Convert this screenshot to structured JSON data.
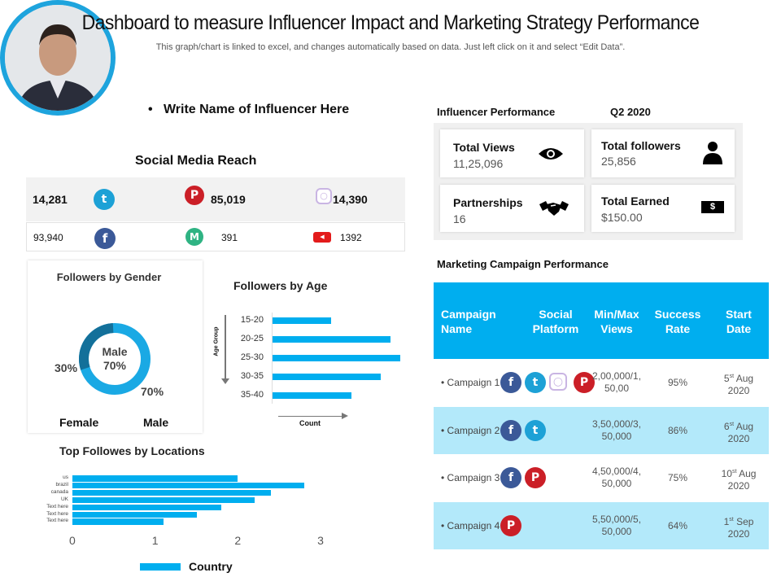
{
  "header": {
    "title": "Dashboard to measure Influencer Impact and Marketing Strategy Performance",
    "subtitle": "This graph/chart is linked to excel, and changes automatically based on data. Just left click on it and select “Edit Data”."
  },
  "influencer": {
    "name": "Write Name of Influencer Here",
    "bullet": "•"
  },
  "reach": {
    "title": "Social Media Reach",
    "items": [
      {
        "platform": "twitter",
        "value": "14,281"
      },
      {
        "platform": "pinterest",
        "value": "85,019"
      },
      {
        "platform": "instagram",
        "value": "14,390"
      },
      {
        "platform": "facebook",
        "value": "93,940"
      },
      {
        "platform": "medium",
        "value": "391"
      },
      {
        "platform": "youtube",
        "value": "1392"
      }
    ]
  },
  "gender": {
    "title": "Followers by Gender",
    "center_label": "Male",
    "center_value": "70%",
    "female_pct": "30%",
    "male_pct": "70%",
    "legend_female": "Female",
    "legend_male": "Male"
  },
  "performance": {
    "title": "Influencer Performance",
    "period": "Q2 2020",
    "cards": [
      {
        "label": "Total Views",
        "value": "11,25,096",
        "icon": "eye-icon"
      },
      {
        "label": "Total followers",
        "value": "25,856",
        "icon": "person-icon"
      },
      {
        "label": "Partnerships",
        "value": "16",
        "icon": "handshake-icon"
      },
      {
        "label": "Total Earned",
        "value": "$150.00",
        "icon": "dollar-bill-icon"
      }
    ]
  },
  "campaign": {
    "title": "Marketing Campaign Performance",
    "headers": [
      "Campaign Name",
      "Social Platform",
      "Min/Max Views",
      "Success Rate",
      "Start Date"
    ],
    "rows": [
      {
        "name": "Campaign 1",
        "platforms": [
          "facebook",
          "twitter",
          "instagram",
          "pinterest"
        ],
        "views": "2,00,000/1, 50,00",
        "rate": "95%",
        "day": "5",
        "sup": "st",
        "month": "Aug",
        "year": "2020"
      },
      {
        "name": "Campaign 2",
        "platforms": [
          "facebook",
          "twitter"
        ],
        "views": "3,50,000/3, 50,000",
        "rate": "86%",
        "day": "6",
        "sup": "st",
        "month": "Aug",
        "year": "2020"
      },
      {
        "name": "Campaign 3",
        "platforms": [
          "facebook",
          "pinterest"
        ],
        "views": "4,50,000/4, 50,000",
        "rate": "75%",
        "day": "10",
        "sup": "st",
        "month": "Aug",
        "year": "2020"
      },
      {
        "name": "Campaign 4",
        "platforms": [
          "pinterest"
        ],
        "views": "5,50,000/5, 50,000",
        "rate": "64%",
        "day": "1",
        "sup": "st",
        "month": "Sep",
        "year": "2020"
      }
    ]
  },
  "colors": {
    "accent": "#00aeef",
    "row_alt": "#b3e9fa",
    "donut_dark": "#13709a"
  },
  "chart_data": [
    {
      "type": "pie",
      "title": "Followers by Gender",
      "categories": [
        "Female",
        "Male"
      ],
      "values": [
        30,
        70
      ]
    },
    {
      "type": "bar",
      "title": "Followers by Age",
      "ylabel": "Age Group",
      "xlabel": "Count",
      "categories": [
        "15-20",
        "20-25",
        "25-30",
        "30-35",
        "35-40"
      ],
      "values": [
        72,
        145,
        157,
        133,
        97
      ]
    },
    {
      "type": "bar",
      "title": "Top Followes by Locations",
      "categories": [
        "us",
        "brazil",
        "canada",
        "UK",
        "Text here",
        "Text here",
        "Text here"
      ],
      "values": [
        2.0,
        2.8,
        2.4,
        2.2,
        1.8,
        1.5,
        1.1
      ],
      "xlim": [
        0,
        3
      ],
      "xticks": [
        "0",
        "1",
        "2",
        "3"
      ],
      "legend": "Country",
      "legend_position": "bottom"
    }
  ]
}
